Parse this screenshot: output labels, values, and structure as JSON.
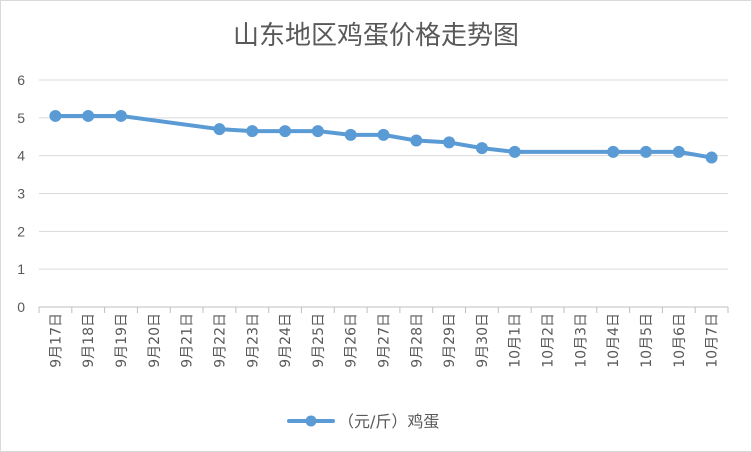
{
  "chart_data": {
    "type": "line",
    "title": "山东地区鸡蛋价格走势图",
    "xlabel": "",
    "ylabel": "",
    "ylim": [
      0,
      6
    ],
    "yticks": [
      0,
      1,
      2,
      3,
      4,
      5,
      6
    ],
    "grid": true,
    "legend_position": "bottom",
    "categories": [
      "9月17日",
      "9月18日",
      "9月19日",
      "9月20日",
      "9月21日",
      "9月22日",
      "9月23日",
      "9月24日",
      "9月25日",
      "9月26日",
      "9月27日",
      "9月28日",
      "9月29日",
      "9月30日",
      "10月1日",
      "10月2日",
      "10月3日",
      "10月4日",
      "10月5日",
      "10月6日",
      "10月7日"
    ],
    "series": [
      {
        "name": "（元/斤）鸡蛋",
        "color": "#5b9bd5",
        "values": [
          5.05,
          5.05,
          5.05,
          null,
          null,
          4.7,
          4.65,
          4.65,
          4.65,
          4.55,
          4.55,
          4.4,
          4.35,
          4.2,
          4.1,
          null,
          null,
          4.1,
          4.1,
          4.1,
          3.95
        ]
      }
    ]
  }
}
